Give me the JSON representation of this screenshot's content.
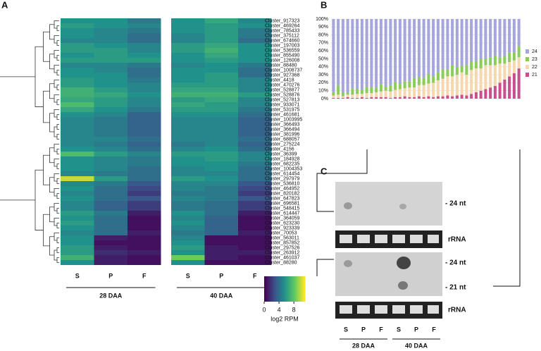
{
  "chart_data": [
    {
      "type": "heatmap",
      "rows": [
        "Cluster_917323",
        "Cluster_469264",
        "Cluster_785433",
        "Cluster_375112",
        "Cluster_674660",
        "Cluster_197003",
        "Cluster_536559",
        "Cluster_855490",
        "Cluster_126008",
        "Cluster_88480",
        "Cluster_1008737",
        "Cluster_927368",
        "Cluster_4418",
        "Cluster_470276",
        "Cluster_528877",
        "Cluster_528876",
        "Cluster_527813",
        "Cluster_933071",
        "Cluster_531975",
        "Cluster_461681",
        "Cluster_1003995",
        "Cluster_366493",
        "Cluster_366494",
        "Cluster_381996",
        "Cluster_688057",
        "Cluster_275224",
        "Cluster_4156",
        "Cluster_36399",
        "Cluster_184928",
        "Cluster_682235",
        "Cluster_1004353",
        "Cluster_614454",
        "Cluster_297979",
        "Cluster_536810",
        "Cluster_464952",
        "Cluster_820182",
        "Cluster_647823",
        "Cluster_696581",
        "Cluster_548415",
        "Cluster_614447",
        "Cluster_364059",
        "Cluster_623230",
        "Cluster_923339",
        "Cluster_70053",
        "Cluster_563011",
        "Cluster_857852",
        "Cluster_297526",
        "Cluster_263912",
        "Cluster_461037",
        "Cluster_88280"
      ],
      "columns": [
        "S",
        "P",
        "F",
        "S",
        "P",
        "F"
      ],
      "groups": [
        "28 DAA",
        "40 DAA"
      ],
      "values": [
        [
          5.5,
          5.5,
          4.5,
          5.5,
          6.5,
          5
        ],
        [
          6,
          5.5,
          5,
          5.5,
          6,
          5.5
        ],
        [
          5.5,
          5,
          4.5,
          5.5,
          6,
          4.5
        ],
        [
          5.5,
          5,
          4,
          5,
          6,
          4.5
        ],
        [
          5,
          5,
          4,
          5,
          6,
          4
        ],
        [
          6,
          5.5,
          5,
          6,
          6.5,
          5.5
        ],
        [
          6,
          6,
          5,
          6,
          7,
          5.5
        ],
        [
          5.5,
          6,
          5.5,
          5.5,
          6.5,
          5.5
        ],
        [
          6,
          6,
          6,
          5.5,
          6,
          5.5
        ],
        [
          5,
          5,
          4.5,
          5,
          5.5,
          4.5
        ],
        [
          5.5,
          5,
          4,
          5.5,
          5.5,
          4
        ],
        [
          5.5,
          5.5,
          4,
          5.5,
          6,
          4
        ],
        [
          6,
          5.5,
          4.5,
          5.5,
          6,
          5
        ],
        [
          6,
          5.5,
          5,
          6,
          6,
          5
        ],
        [
          7,
          6,
          5,
          6.5,
          6.5,
          5
        ],
        [
          7,
          6.5,
          5.5,
          7,
          7,
          6
        ],
        [
          6.5,
          6,
          5,
          6,
          6.5,
          5
        ],
        [
          7.5,
          6,
          5,
          6.5,
          6,
          5
        ],
        [
          6.5,
          5.5,
          4.5,
          6,
          6,
          4.5
        ],
        [
          5.5,
          5,
          3.5,
          5.5,
          5.5,
          4
        ],
        [
          5,
          4.5,
          3.5,
          5,
          5,
          3.5
        ],
        [
          5,
          4.5,
          3.5,
          5,
          5,
          3.5
        ],
        [
          5,
          4.5,
          3.5,
          5,
          5,
          3.5
        ],
        [
          5,
          4.5,
          3.5,
          5,
          5,
          3.5
        ],
        [
          5,
          5,
          4,
          5,
          5,
          4
        ],
        [
          5,
          4.5,
          3.5,
          4.5,
          5,
          3.5
        ],
        [
          5.5,
          5,
          4,
          5,
          5.5,
          4
        ],
        [
          7.5,
          6,
          5,
          6,
          6,
          5
        ],
        [
          5.5,
          5,
          4.5,
          5.5,
          6,
          5
        ],
        [
          5.5,
          5,
          4.5,
          5.5,
          5.5,
          4.5
        ],
        [
          5.5,
          5,
          4,
          5,
          5.5,
          4
        ],
        [
          5,
          4.5,
          4,
          5,
          5,
          4
        ],
        [
          10,
          6,
          4,
          6,
          5.5,
          4
        ],
        [
          5,
          4.5,
          3,
          5,
          5,
          3
        ],
        [
          5.5,
          4,
          2.5,
          5,
          4.5,
          2.5
        ],
        [
          5,
          4,
          2,
          4.5,
          4.5,
          2
        ],
        [
          5.5,
          4,
          3,
          5,
          4.5,
          3
        ],
        [
          5,
          3.5,
          2,
          4.5,
          4,
          2
        ],
        [
          5,
          3.5,
          2,
          4.5,
          4,
          2
        ],
        [
          6,
          4.5,
          1,
          5.5,
          4,
          1
        ],
        [
          5.5,
          4,
          0.5,
          5,
          3.5,
          0.5
        ],
        [
          6,
          4,
          0.5,
          5.5,
          3.5,
          0.5
        ],
        [
          5.5,
          4,
          0.5,
          5,
          3.5,
          0.5
        ],
        [
          5,
          4,
          1,
          4.5,
          3.5,
          1
        ],
        [
          5.5,
          1,
          0.5,
          5,
          0.5,
          0.5
        ],
        [
          5.5,
          0.5,
          0.5,
          5.5,
          0.5,
          0.5
        ],
        [
          6,
          1,
          0.5,
          6,
          1,
          0.5
        ],
        [
          6,
          1.5,
          1,
          5.5,
          1,
          1
        ],
        [
          7,
          1,
          0.5,
          8.5,
          1,
          0.5
        ],
        [
          5.5,
          1,
          0.5,
          5.5,
          0.5,
          0.5
        ]
      ],
      "colorbar": {
        "label": "log2 RPM",
        "lim": [
          0,
          11
        ],
        "ticks": [
          0,
          4,
          8
        ]
      }
    },
    {
      "type": "stacked-bar",
      "categories": [
        null,
        null,
        null,
        null,
        null,
        null,
        null,
        null,
        null,
        null,
        null,
        null,
        null,
        null,
        null,
        null,
        null,
        null,
        null,
        null,
        null,
        null,
        null,
        null,
        null,
        null,
        null,
        null,
        null,
        null,
        null,
        null,
        null,
        null,
        null,
        null,
        null,
        null,
        null,
        null
      ],
      "series": [
        {
          "name": "24",
          "color": "#a6a6dc",
          "values": [
            92,
            83,
            92,
            92,
            87,
            88,
            89,
            85,
            86,
            86,
            82,
            85,
            83,
            79,
            81,
            78,
            78,
            74,
            73,
            74,
            69,
            72,
            67,
            63,
            63,
            58,
            60,
            59,
            58,
            54,
            53,
            50,
            50,
            48,
            46,
            48,
            46,
            42,
            42,
            34
          ]
        },
        {
          "name": "23",
          "color": "#8ccc5a",
          "values": [
            4,
            12,
            5,
            3,
            8,
            6,
            5,
            8,
            7,
            6,
            9,
            5,
            8,
            10,
            7,
            9,
            8,
            12,
            10,
            9,
            12,
            8,
            10,
            12,
            9,
            14,
            10,
            8,
            12,
            10,
            9,
            12,
            8,
            10,
            12,
            8,
            10,
            12,
            10,
            14
          ]
        },
        {
          "name": "22",
          "color": "#f6d8b0",
          "values": [
            3,
            4,
            2,
            3,
            4,
            5,
            4,
            6,
            5,
            6,
            7,
            8,
            8,
            9,
            10,
            10,
            12,
            12,
            14,
            15,
            16,
            18,
            20,
            22,
            24,
            25,
            26,
            28,
            26,
            30,
            30,
            28,
            30,
            28,
            26,
            24,
            20,
            18,
            16,
            14
          ]
        },
        {
          "name": "21",
          "color": "#c8508c",
          "values": [
            1,
            1,
            1,
            2,
            1,
            1,
            2,
            1,
            2,
            2,
            2,
            2,
            1,
            2,
            2,
            3,
            2,
            2,
            3,
            2,
            3,
            2,
            3,
            3,
            4,
            3,
            4,
            5,
            4,
            6,
            8,
            10,
            12,
            14,
            16,
            20,
            24,
            28,
            32,
            38
          ]
        }
      ],
      "ylim": [
        0,
        100
      ],
      "yticks": [
        {
          "value": 0,
          "label": "0%"
        },
        {
          "value": 10,
          "label": "10%"
        },
        {
          "value": 20,
          "label": "20%"
        },
        {
          "value": 30,
          "label": "30%"
        },
        {
          "value": 40,
          "label": "40%"
        },
        {
          "value": 50,
          "label": "50%"
        },
        {
          "value": 60,
          "label": "60%"
        },
        {
          "value": 70,
          "label": "70%"
        },
        {
          "value": 80,
          "label": "80%"
        },
        {
          "value": 90,
          "label": "90%"
        },
        {
          "value": 100,
          "label": "100%"
        }
      ],
      "grid": true,
      "legend": "right"
    }
  ],
  "panel_labels": [
    "A",
    "B",
    "C"
  ],
  "blot": {
    "labels": [
      "- 24 nt",
      "rRNA",
      "- 24 nt",
      "- 21 nt",
      "rRNA"
    ],
    "lanes": [
      "S",
      "P",
      "F",
      "S",
      "P",
      "F"
    ],
    "groups": [
      "28 DAA",
      "40 DAA"
    ]
  }
}
